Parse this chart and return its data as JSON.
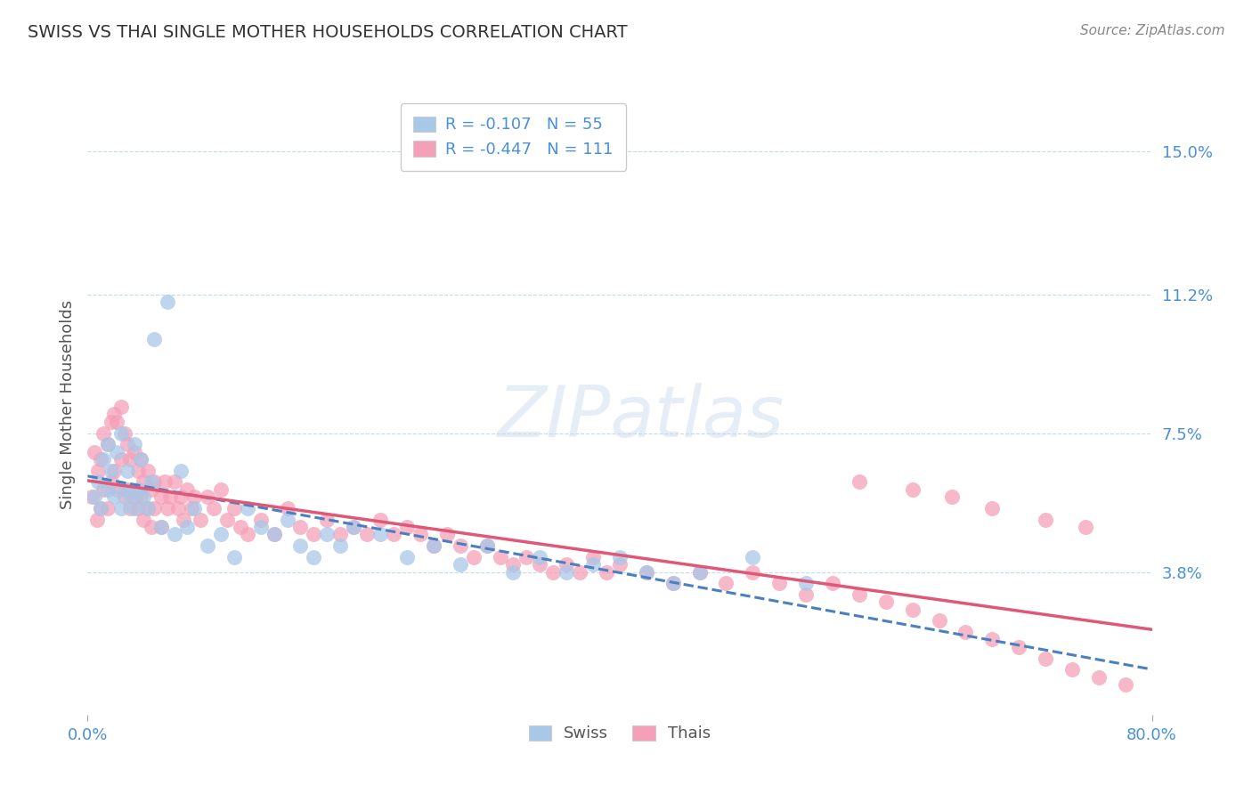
{
  "title": "SWISS VS THAI SINGLE MOTHER HOUSEHOLDS CORRELATION CHART",
  "source": "Source: ZipAtlas.com",
  "ylabel": "Single Mother Households",
  "xlim": [
    0.0,
    0.8
  ],
  "ylim": [
    0.0,
    0.165
  ],
  "yticks": [
    0.038,
    0.075,
    0.112,
    0.15
  ],
  "ytick_labels": [
    "3.8%",
    "7.5%",
    "11.2%",
    "15.0%"
  ],
  "xticks": [
    0.0,
    0.8
  ],
  "xtick_labels": [
    "0.0%",
    "80.0%"
  ],
  "swiss_color": "#a8c8e8",
  "thai_color": "#f5a0b8",
  "swiss_line_color": "#4a80c0",
  "thai_line_color": "#e05878",
  "R_swiss": -0.107,
  "N_swiss": 55,
  "R_thai": -0.447,
  "N_thai": 111,
  "legend_label_swiss": "Swiss",
  "legend_label_thai": "Thais",
  "watermark": "ZIPatlas",
  "label_color": "#4a90d9",
  "swiss_scatter_x": [
    0.005,
    0.008,
    0.01,
    0.012,
    0.015,
    0.015,
    0.018,
    0.02,
    0.022,
    0.025,
    0.025,
    0.028,
    0.03,
    0.032,
    0.035,
    0.035,
    0.038,
    0.04,
    0.042,
    0.045,
    0.048,
    0.05,
    0.055,
    0.06,
    0.065,
    0.07,
    0.075,
    0.08,
    0.09,
    0.1,
    0.11,
    0.12,
    0.13,
    0.14,
    0.15,
    0.16,
    0.17,
    0.18,
    0.19,
    0.2,
    0.22,
    0.24,
    0.26,
    0.28,
    0.3,
    0.32,
    0.34,
    0.36,
    0.38,
    0.4,
    0.42,
    0.44,
    0.46,
    0.5,
    0.54
  ],
  "swiss_scatter_y": [
    0.058,
    0.062,
    0.055,
    0.068,
    0.06,
    0.072,
    0.065,
    0.058,
    0.07,
    0.055,
    0.075,
    0.06,
    0.065,
    0.058,
    0.072,
    0.055,
    0.06,
    0.068,
    0.058,
    0.055,
    0.062,
    0.1,
    0.05,
    0.11,
    0.048,
    0.065,
    0.05,
    0.055,
    0.045,
    0.048,
    0.042,
    0.055,
    0.05,
    0.048,
    0.052,
    0.045,
    0.042,
    0.048,
    0.045,
    0.05,
    0.048,
    0.042,
    0.045,
    0.04,
    0.045,
    0.038,
    0.042,
    0.038,
    0.04,
    0.042,
    0.038,
    0.035,
    0.038,
    0.042,
    0.035
  ],
  "thai_scatter_x": [
    0.003,
    0.005,
    0.007,
    0.008,
    0.01,
    0.01,
    0.012,
    0.012,
    0.015,
    0.015,
    0.018,
    0.018,
    0.02,
    0.02,
    0.022,
    0.022,
    0.025,
    0.025,
    0.028,
    0.028,
    0.03,
    0.03,
    0.032,
    0.032,
    0.035,
    0.035,
    0.038,
    0.038,
    0.04,
    0.04,
    0.042,
    0.042,
    0.045,
    0.045,
    0.048,
    0.048,
    0.05,
    0.05,
    0.055,
    0.055,
    0.058,
    0.06,
    0.062,
    0.065,
    0.068,
    0.07,
    0.072,
    0.075,
    0.078,
    0.08,
    0.085,
    0.09,
    0.095,
    0.1,
    0.105,
    0.11,
    0.115,
    0.12,
    0.13,
    0.14,
    0.15,
    0.16,
    0.17,
    0.18,
    0.19,
    0.2,
    0.21,
    0.22,
    0.23,
    0.24,
    0.25,
    0.26,
    0.27,
    0.28,
    0.29,
    0.3,
    0.31,
    0.32,
    0.33,
    0.34,
    0.35,
    0.36,
    0.37,
    0.38,
    0.39,
    0.4,
    0.42,
    0.44,
    0.46,
    0.48,
    0.5,
    0.52,
    0.54,
    0.56,
    0.58,
    0.6,
    0.62,
    0.64,
    0.66,
    0.68,
    0.7,
    0.72,
    0.74,
    0.76,
    0.78,
    0.58,
    0.62,
    0.65,
    0.68,
    0.72,
    0.75
  ],
  "thai_scatter_y": [
    0.058,
    0.07,
    0.052,
    0.065,
    0.068,
    0.055,
    0.075,
    0.06,
    0.072,
    0.055,
    0.078,
    0.062,
    0.08,
    0.065,
    0.078,
    0.06,
    0.082,
    0.068,
    0.075,
    0.058,
    0.072,
    0.06,
    0.068,
    0.055,
    0.07,
    0.058,
    0.065,
    0.055,
    0.068,
    0.058,
    0.062,
    0.052,
    0.065,
    0.055,
    0.06,
    0.05,
    0.062,
    0.055,
    0.058,
    0.05,
    0.062,
    0.055,
    0.058,
    0.062,
    0.055,
    0.058,
    0.052,
    0.06,
    0.055,
    0.058,
    0.052,
    0.058,
    0.055,
    0.06,
    0.052,
    0.055,
    0.05,
    0.048,
    0.052,
    0.048,
    0.055,
    0.05,
    0.048,
    0.052,
    0.048,
    0.05,
    0.048,
    0.052,
    0.048,
    0.05,
    0.048,
    0.045,
    0.048,
    0.045,
    0.042,
    0.045,
    0.042,
    0.04,
    0.042,
    0.04,
    0.038,
    0.04,
    0.038,
    0.042,
    0.038,
    0.04,
    0.038,
    0.035,
    0.038,
    0.035,
    0.038,
    0.035,
    0.032,
    0.035,
    0.032,
    0.03,
    0.028,
    0.025,
    0.022,
    0.02,
    0.018,
    0.015,
    0.012,
    0.01,
    0.008,
    0.062,
    0.06,
    0.058,
    0.055,
    0.052,
    0.05
  ]
}
